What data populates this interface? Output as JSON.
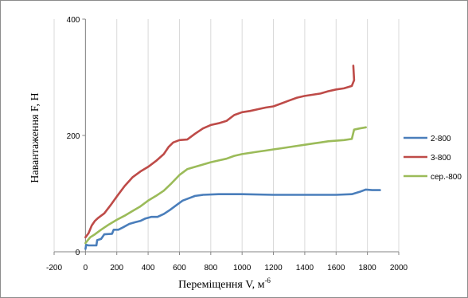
{
  "chart_data": {
    "type": "line",
    "xlabel": "Переміщення V, м",
    "xlabel_sup": "-6",
    "ylabel": "Навантаження F, Н",
    "xlim": [
      -200,
      2000
    ],
    "ylim": [
      0,
      400
    ],
    "x_ticks": [
      "-200",
      "0",
      "200",
      "400",
      "600",
      "800",
      "1000",
      "1200",
      "1400",
      "1600",
      "1800",
      "2000"
    ],
    "y_ticks": [
      "0",
      "200",
      "400"
    ],
    "grid": "vertical",
    "legend_position": "right",
    "series": [
      {
        "name": "2-800",
        "color": "#4a7ebb",
        "points": [
          [
            0,
            5
          ],
          [
            5,
            12
          ],
          [
            20,
            11
          ],
          [
            70,
            11
          ],
          [
            75,
            20
          ],
          [
            100,
            22
          ],
          [
            120,
            30
          ],
          [
            170,
            31
          ],
          [
            180,
            38
          ],
          [
            210,
            38
          ],
          [
            240,
            42
          ],
          [
            280,
            48
          ],
          [
            320,
            51
          ],
          [
            350,
            53
          ],
          [
            380,
            57
          ],
          [
            420,
            60
          ],
          [
            460,
            60
          ],
          [
            500,
            65
          ],
          [
            540,
            72
          ],
          [
            580,
            80
          ],
          [
            620,
            88
          ],
          [
            660,
            92
          ],
          [
            700,
            96
          ],
          [
            750,
            98
          ],
          [
            850,
            99
          ],
          [
            1000,
            99
          ],
          [
            1200,
            98
          ],
          [
            1400,
            98
          ],
          [
            1600,
            98
          ],
          [
            1700,
            99
          ],
          [
            1750,
            103
          ],
          [
            1790,
            107
          ],
          [
            1830,
            106
          ],
          [
            1880,
            106
          ]
        ]
      },
      {
        "name": "3-800",
        "color": "#be4b48",
        "points": [
          [
            0,
            25
          ],
          [
            20,
            32
          ],
          [
            40,
            45
          ],
          [
            60,
            53
          ],
          [
            80,
            58
          ],
          [
            120,
            66
          ],
          [
            160,
            80
          ],
          [
            200,
            95
          ],
          [
            250,
            113
          ],
          [
            300,
            128
          ],
          [
            350,
            138
          ],
          [
            400,
            146
          ],
          [
            450,
            156
          ],
          [
            500,
            168
          ],
          [
            530,
            180
          ],
          [
            560,
            188
          ],
          [
            600,
            192
          ],
          [
            650,
            193
          ],
          [
            700,
            203
          ],
          [
            750,
            212
          ],
          [
            800,
            218
          ],
          [
            850,
            221
          ],
          [
            900,
            225
          ],
          [
            950,
            235
          ],
          [
            1000,
            240
          ],
          [
            1050,
            242
          ],
          [
            1100,
            245
          ],
          [
            1150,
            248
          ],
          [
            1200,
            250
          ],
          [
            1250,
            255
          ],
          [
            1300,
            260
          ],
          [
            1350,
            265
          ],
          [
            1400,
            268
          ],
          [
            1450,
            270
          ],
          [
            1500,
            272
          ],
          [
            1550,
            276
          ],
          [
            1600,
            279
          ],
          [
            1650,
            281
          ],
          [
            1700,
            285
          ],
          [
            1715,
            295
          ],
          [
            1710,
            320
          ]
        ]
      },
      {
        "name": "сер.-800",
        "color": "#9bbb59",
        "points": [
          [
            0,
            15
          ],
          [
            30,
            25
          ],
          [
            60,
            30
          ],
          [
            100,
            38
          ],
          [
            150,
            47
          ],
          [
            200,
            55
          ],
          [
            250,
            62
          ],
          [
            300,
            70
          ],
          [
            350,
            78
          ],
          [
            400,
            88
          ],
          [
            450,
            96
          ],
          [
            500,
            105
          ],
          [
            550,
            118
          ],
          [
            600,
            132
          ],
          [
            650,
            142
          ],
          [
            700,
            146
          ],
          [
            750,
            150
          ],
          [
            800,
            154
          ],
          [
            850,
            157
          ],
          [
            900,
            160
          ],
          [
            950,
            165
          ],
          [
            1000,
            168
          ],
          [
            1050,
            170
          ],
          [
            1100,
            172
          ],
          [
            1150,
            174
          ],
          [
            1200,
            176
          ],
          [
            1250,
            178
          ],
          [
            1300,
            180
          ],
          [
            1350,
            182
          ],
          [
            1400,
            184
          ],
          [
            1450,
            186
          ],
          [
            1500,
            188
          ],
          [
            1550,
            190
          ],
          [
            1600,
            191
          ],
          [
            1650,
            192
          ],
          [
            1700,
            194
          ],
          [
            1715,
            210
          ],
          [
            1750,
            212
          ],
          [
            1790,
            214
          ]
        ]
      }
    ]
  }
}
